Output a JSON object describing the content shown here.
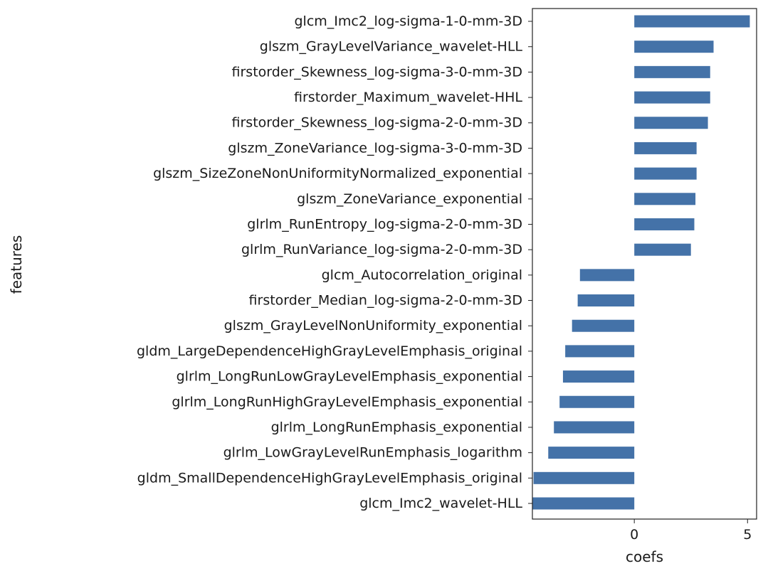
{
  "chart_data": {
    "type": "bar",
    "orientation": "horizontal",
    "xlabel": "coefs",
    "ylabel": "features",
    "xlim": [
      -4.5,
      5.4
    ],
    "xticks": [
      0,
      5
    ],
    "grid": false,
    "bar_color": "#4472a8",
    "categories": [
      "glcm_Imc2_log-sigma-1-0-mm-3D",
      "glszm_GrayLevelVariance_wavelet-HLL",
      "firstorder_Skewness_log-sigma-3-0-mm-3D",
      "firstorder_Maximum_wavelet-HHL",
      "firstorder_Skewness_log-sigma-2-0-mm-3D",
      "glszm_ZoneVariance_log-sigma-3-0-mm-3D",
      "glszm_SizeZoneNonUniformityNormalized_exponential",
      "glszm_ZoneVariance_exponential",
      "glrlm_RunEntropy_log-sigma-2-0-mm-3D",
      "glrlm_RunVariance_log-sigma-2-0-mm-3D",
      "glcm_Autocorrelation_original",
      "firstorder_Median_log-sigma-2-0-mm-3D",
      "glszm_GrayLevelNonUniformity_exponential",
      "gldm_LargeDependenceHighGrayLevelEmphasis_original",
      "glrlm_LongRunLowGrayLevelEmphasis_exponential",
      "glrlm_LongRunHighGrayLevelEmphasis_exponential",
      "glrlm_LongRunEmphasis_exponential",
      "glrlm_LowGrayLevelRunEmphasis_logarithm",
      "gldm_SmallDependenceHighGrayLevelEmphasis_original",
      "glcm_Imc2_wavelet-HLL"
    ],
    "values": [
      5.1,
      3.5,
      3.35,
      3.35,
      3.25,
      2.75,
      2.75,
      2.7,
      2.65,
      2.5,
      -2.4,
      -2.5,
      -2.75,
      -3.05,
      -3.15,
      -3.3,
      -3.55,
      -3.8,
      -4.45,
      -4.5
    ]
  }
}
